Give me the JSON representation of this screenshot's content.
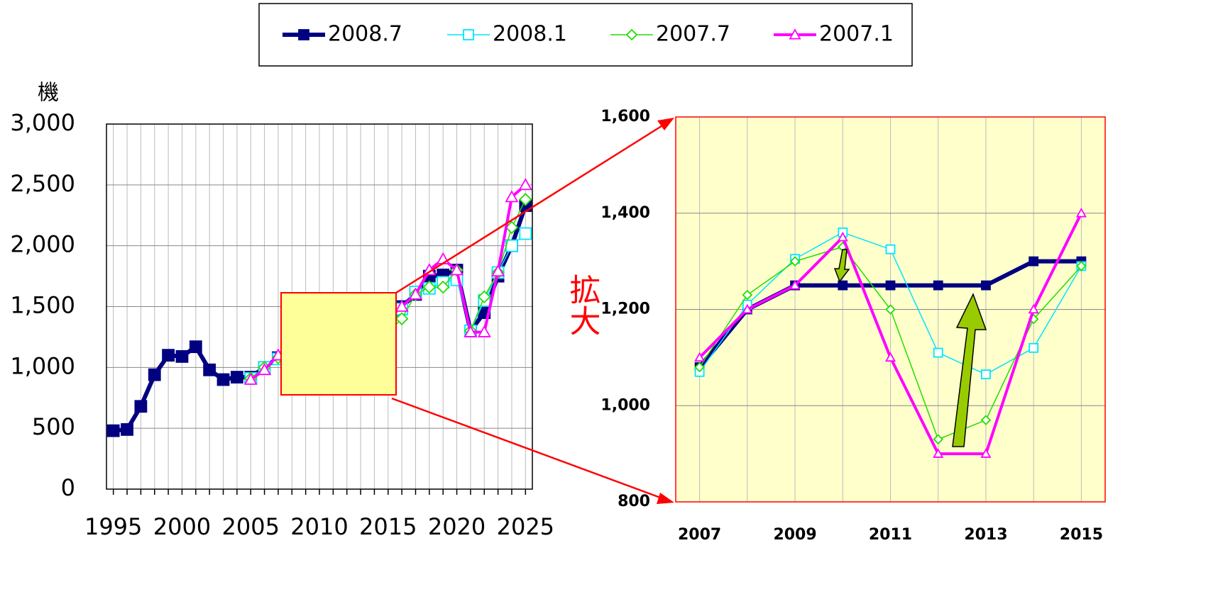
{
  "chart_data": [
    {
      "type": "line",
      "y_label": "機",
      "x": [
        1995,
        1996,
        1997,
        1998,
        1999,
        2000,
        2001,
        2002,
        2003,
        2004,
        2005,
        2006,
        2007,
        2008,
        2009,
        2010,
        2011,
        2012,
        2013,
        2014,
        2015,
        2016,
        2017,
        2018,
        2019,
        2020,
        2021,
        2022,
        2023,
        2024,
        2025
      ],
      "xlim": [
        1994.5,
        2025.5
      ],
      "xticks": [
        1995,
        2000,
        2005,
        2010,
        2015,
        2020,
        2025
      ],
      "ylim": [
        0,
        3000
      ],
      "yticks": [
        0,
        500,
        {
          "value": 1000,
          "label": "1,000"
        },
        {
          "value": 1500,
          "label": "1,500"
        },
        {
          "value": 2000,
          "label": "2,000"
        },
        {
          "value": 2500,
          "label": "2,500"
        },
        {
          "value": 3000,
          "label": "3,000"
        }
      ],
      "grid": true,
      "series": [
        {
          "name": "2008.7",
          "color": "#000080",
          "marker": "square",
          "filled": true,
          "line_width": 6,
          "values": [
            480,
            490,
            680,
            940,
            1100,
            1090,
            1170,
            980,
            900,
            920,
            920,
            1000,
            1080,
            1200,
            1250,
            1250,
            1250,
            1250,
            1250,
            1300,
            1300,
            1500,
            1600,
            1750,
            1760,
            1800,
            1300,
            1450,
            1750,
            2000,
            2330
          ]
        },
        {
          "name": "2008.1",
          "color": "#00e5ff",
          "marker": "square",
          "filled": false,
          "line_width": 1.5,
          "values": [
            null,
            null,
            null,
            null,
            null,
            null,
            null,
            null,
            null,
            null,
            910,
            1000,
            1070,
            1210,
            1305,
            1360,
            1325,
            1110,
            1065,
            1120,
            1290,
            1480,
            1620,
            1650,
            1700,
            1720,
            1300,
            1550,
            1780,
            2000,
            2100
          ]
        },
        {
          "name": "2007.7",
          "color": "#22dd00",
          "marker": "diamond",
          "filled": false,
          "line_width": 1.5,
          "values": [
            null,
            null,
            null,
            null,
            null,
            null,
            null,
            null,
            null,
            null,
            910,
            1000,
            1080,
            1230,
            1300,
            1330,
            1200,
            930,
            970,
            1180,
            1290,
            1400,
            1600,
            1660,
            1660,
            1800,
            1300,
            1580,
            1780,
            2150,
            2380
          ]
        },
        {
          "name": "2007.1",
          "color": "#ff00ff",
          "marker": "triangle",
          "filled": false,
          "line_width": 4,
          "values": [
            null,
            null,
            null,
            null,
            null,
            null,
            null,
            null,
            null,
            null,
            900,
            980,
            1100,
            1200,
            1250,
            1350,
            1100,
            900,
            900,
            1200,
            1400,
            1500,
            1600,
            1800,
            1890,
            1800,
            1290,
            1290,
            1790,
            2400,
            2500
          ]
        }
      ]
    },
    {
      "type": "line",
      "annotation": "拡大",
      "x": [
        2007,
        2008,
        2009,
        2010,
        2011,
        2012,
        2013,
        2014,
        2015
      ],
      "xlim": [
        2006.5,
        2015.5
      ],
      "xticks": [
        2007,
        2009,
        2011,
        2013,
        2015
      ],
      "ylim": [
        800,
        1600
      ],
      "yticks": [
        800,
        {
          "value": 1000,
          "label": "1,000"
        },
        {
          "value": 1200,
          "label": "1,200"
        },
        {
          "value": 1400,
          "label": "1,400"
        },
        {
          "value": 1600,
          "label": "1,600"
        }
      ],
      "grid": true,
      "background": "#ffffcc",
      "border_color": "#ff0000",
      "series": [
        {
          "color": "#000080",
          "marker": "square",
          "filled": true,
          "line_width": 6,
          "values": [
            1080,
            1200,
            1250,
            1250,
            1250,
            1250,
            1250,
            1300,
            1300
          ]
        },
        {
          "color": "#00e5ff",
          "marker": "square",
          "filled": false,
          "line_width": 1.5,
          "values": [
            1070,
            1210,
            1305,
            1360,
            1325,
            1110,
            1065,
            1120,
            1290
          ]
        },
        {
          "color": "#22dd00",
          "marker": "diamond",
          "filled": false,
          "line_width": 1.5,
          "values": [
            1080,
            1230,
            1300,
            1330,
            1200,
            930,
            970,
            1180,
            1290
          ]
        },
        {
          "color": "#ff00ff",
          "marker": "triangle",
          "filled": false,
          "line_width": 4,
          "values": [
            1100,
            1200,
            1250,
            1350,
            1100,
            900,
            900,
            1200,
            1400
          ]
        }
      ]
    }
  ]
}
